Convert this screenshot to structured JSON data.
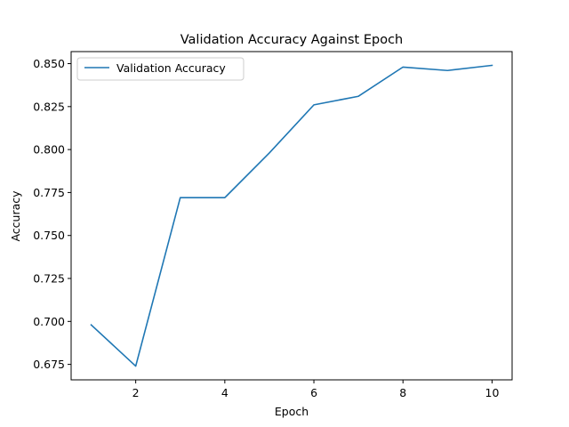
{
  "chart_data": {
    "type": "line",
    "title": "Validation Accuracy Against Epoch",
    "xlabel": "Epoch",
    "ylabel": "Accuracy",
    "xlim": [
      0.55,
      10.45
    ],
    "ylim": [
      0.666,
      0.857
    ],
    "xticks": [
      2,
      4,
      6,
      8,
      10
    ],
    "xtick_labels": [
      "2",
      "4",
      "6",
      "8",
      "10"
    ],
    "yticks": [
      0.675,
      0.7,
      0.725,
      0.75,
      0.775,
      0.8,
      0.825,
      0.85
    ],
    "ytick_labels": [
      "0.675",
      "0.700",
      "0.725",
      "0.750",
      "0.775",
      "0.800",
      "0.825",
      "0.850"
    ],
    "grid": false,
    "legend_position": "upper-left",
    "series": [
      {
        "name": "Validation Accuracy",
        "color": "#1f77b4",
        "x": [
          1,
          2,
          3,
          4,
          5,
          6,
          7,
          8,
          9,
          10
        ],
        "y": [
          0.698,
          0.674,
          0.772,
          0.772,
          0.798,
          0.826,
          0.831,
          0.848,
          0.846,
          0.849
        ]
      }
    ]
  }
}
